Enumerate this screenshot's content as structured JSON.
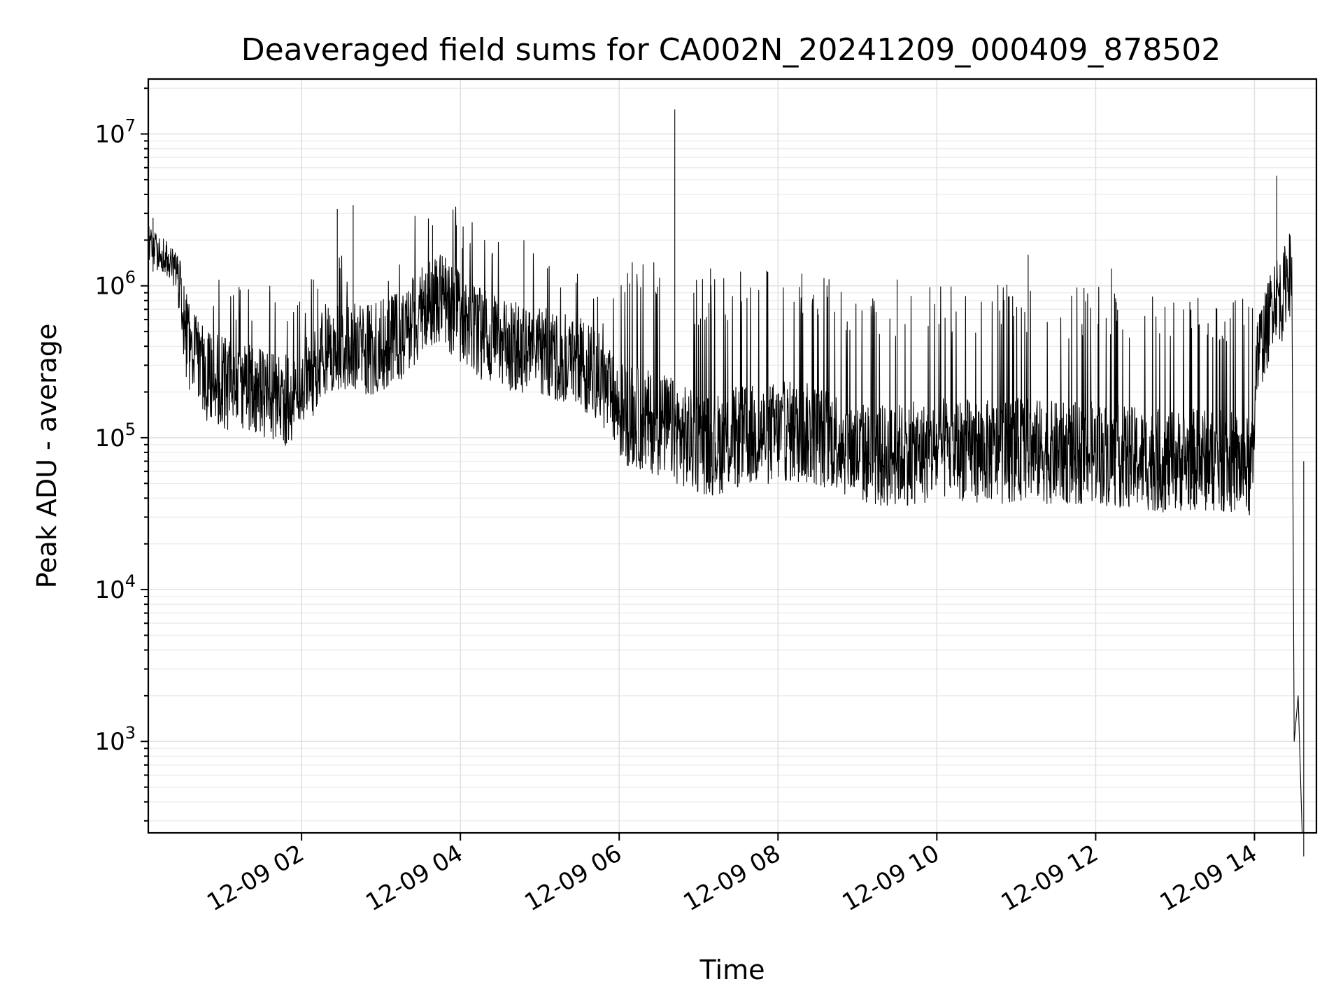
{
  "chart_data": {
    "type": "line",
    "title": "Deaveraged field sums for CA002N_20241209_000409_878502",
    "xlabel": "Time",
    "ylabel": "Peak ADU - average",
    "yscale": "log",
    "ylim": [
      250,
      23000000
    ],
    "xlim_hours": [
      0.07,
      14.78
    ],
    "grid": true,
    "legend": "none",
    "line_color": "#000000",
    "x_ticks": [
      {
        "hour": 2,
        "label": "12-09 02"
      },
      {
        "hour": 4,
        "label": "12-09 04"
      },
      {
        "hour": 6,
        "label": "12-09 06"
      },
      {
        "hour": 8,
        "label": "12-09 08"
      },
      {
        "hour": 10,
        "label": "12-09 10"
      },
      {
        "hour": 12,
        "label": "12-09 12"
      },
      {
        "hour": 14,
        "label": "12-09 14"
      }
    ],
    "y_ticks": [
      {
        "value": 1000,
        "base": "10",
        "exp": "3"
      },
      {
        "value": 10000,
        "base": "10",
        "exp": "4"
      },
      {
        "value": 100000,
        "base": "10",
        "exp": "5"
      },
      {
        "value": 1000000,
        "base": "10",
        "exp": "6"
      },
      {
        "value": 10000000,
        "base": "10",
        "exp": "7"
      }
    ],
    "series": [
      {
        "time_unit": "hour of 2024-12-09",
        "points": [
          [
            0.07,
            2000000
          ],
          [
            0.15,
            1700000
          ],
          [
            0.25,
            1600000
          ],
          [
            0.35,
            1400000
          ],
          [
            0.45,
            1200000
          ],
          [
            0.5,
            600000
          ],
          [
            0.6,
            380000
          ],
          [
            0.8,
            260000
          ],
          [
            1.0,
            230000
          ],
          [
            1.3,
            210000
          ],
          [
            1.6,
            190000
          ],
          [
            1.9,
            170000
          ],
          [
            2.1,
            250000
          ],
          [
            2.3,
            380000
          ],
          [
            2.6,
            400000
          ],
          [
            2.9,
            380000
          ],
          [
            3.2,
            450000
          ],
          [
            3.5,
            650000
          ],
          [
            3.7,
            850000
          ],
          [
            3.9,
            700000
          ],
          [
            4.2,
            500000
          ],
          [
            4.5,
            420000
          ],
          [
            4.8,
            380000
          ],
          [
            5.1,
            360000
          ],
          [
            5.4,
            330000
          ],
          [
            5.7,
            270000
          ],
          [
            6.0,
            150000
          ],
          [
            6.3,
            130000
          ],
          [
            6.6,
            120000
          ],
          [
            6.9,
            95000
          ],
          [
            7.2,
            90000
          ],
          [
            7.5,
            100000
          ],
          [
            7.8,
            105000
          ],
          [
            8.1,
            110000
          ],
          [
            8.4,
            105000
          ],
          [
            8.7,
            100000
          ],
          [
            9.0,
            80000
          ],
          [
            9.3,
            75000
          ],
          [
            9.6,
            78000
          ],
          [
            9.9,
            80000
          ],
          [
            10.2,
            85000
          ],
          [
            10.5,
            82000
          ],
          [
            10.8,
            80000
          ],
          [
            11.1,
            85000
          ],
          [
            11.4,
            80000
          ],
          [
            11.7,
            78000
          ],
          [
            12.0,
            80000
          ],
          [
            12.3,
            75000
          ],
          [
            12.6,
            72000
          ],
          [
            12.9,
            70000
          ],
          [
            13.2,
            72000
          ],
          [
            13.5,
            70000
          ],
          [
            13.8,
            68000
          ],
          [
            13.98,
            60000
          ],
          [
            14.02,
            350000
          ],
          [
            14.15,
            500000
          ],
          [
            14.25,
            900000
          ],
          [
            14.35,
            800000
          ],
          [
            14.42,
            1300000
          ],
          [
            14.47,
            1100000
          ],
          [
            14.5,
            1000
          ],
          [
            14.55,
            2000
          ],
          [
            14.6,
            250
          ]
        ],
        "spikes": [
          [
            0.13,
            2800000
          ],
          [
            1.6,
            1000000
          ],
          [
            2.15,
            1100000
          ],
          [
            2.45,
            3200000
          ],
          [
            2.65,
            3400000
          ],
          [
            3.65,
            2500000
          ],
          [
            3.95,
            2500000
          ],
          [
            4.8,
            2000000
          ],
          [
            6.7,
            14500000
          ],
          [
            7.15,
            1300000
          ],
          [
            8.3,
            1200000
          ],
          [
            9.5,
            1100000
          ],
          [
            11.15,
            1600000
          ],
          [
            12.2,
            1300000
          ],
          [
            14.28,
            5300000
          ],
          [
            14.62,
            70000
          ]
        ]
      }
    ]
  }
}
